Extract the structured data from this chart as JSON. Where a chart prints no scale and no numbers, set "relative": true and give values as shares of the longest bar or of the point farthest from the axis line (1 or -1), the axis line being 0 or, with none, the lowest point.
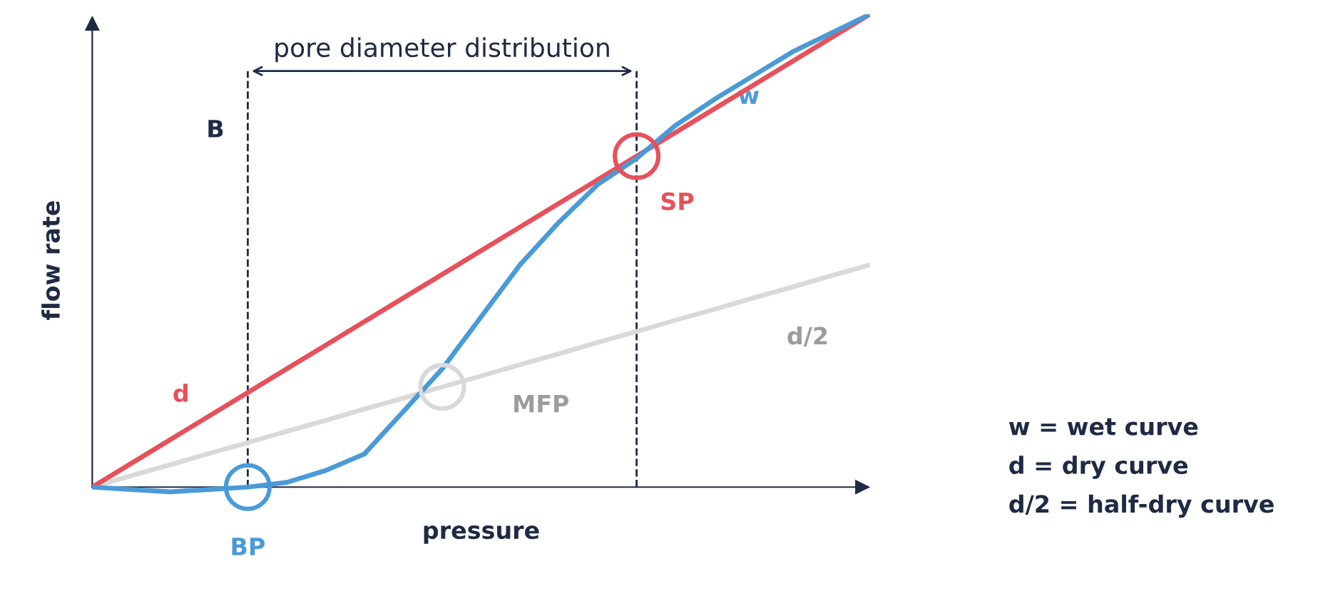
{
  "chart_data": {
    "type": "line",
    "relative": true,
    "xlabel": "pressure",
    "ylabel": "flow rate",
    "grid": false,
    "legend": false,
    "marker": "none",
    "line_style": "solid",
    "categories": [
      null,
      null,
      null,
      null,
      null,
      null,
      null,
      null,
      null,
      null,
      null,
      null,
      null,
      null,
      null,
      null,
      null,
      null,
      null,
      null,
      null
    ],
    "series": [
      {
        "name": "w",
        "color": "#4a9ad8",
        "values": [
          0,
          -0.005,
          -0.01,
          -0.005,
          0,
          0.01,
          0.035,
          0.07,
          0.16,
          0.25,
          0.36,
          0.47,
          0.56,
          0.64,
          0.695,
          0.765,
          0.82,
          0.87,
          0.92,
          0.96,
          1
        ]
      },
      {
        "name": "d",
        "color": "#e8505b",
        "values": [
          0,
          0.05,
          0.1,
          0.15,
          0.2,
          0.25,
          0.3,
          0.35,
          0.4,
          0.45,
          0.5,
          0.55,
          0.6,
          0.65,
          0.7,
          0.75,
          0.8,
          0.85,
          0.9,
          0.95,
          1
        ]
      },
      {
        "name": "d/2",
        "color": "#d9d9d9",
        "values": [
          0,
          0.024,
          0.047,
          0.071,
          0.094,
          0.118,
          0.141,
          0.165,
          0.188,
          0.212,
          0.235,
          0.259,
          0.282,
          0.306,
          0.329,
          0.353,
          0.376,
          0.4,
          0.423,
          0.447,
          0.47
        ]
      }
    ],
    "annotations": [
      "B",
      "BP",
      "SP",
      "MFP",
      "pore diameter distribution",
      "w = wet curve",
      "d = dry curve",
      "d/2 = half-dry curve"
    ]
  }
}
